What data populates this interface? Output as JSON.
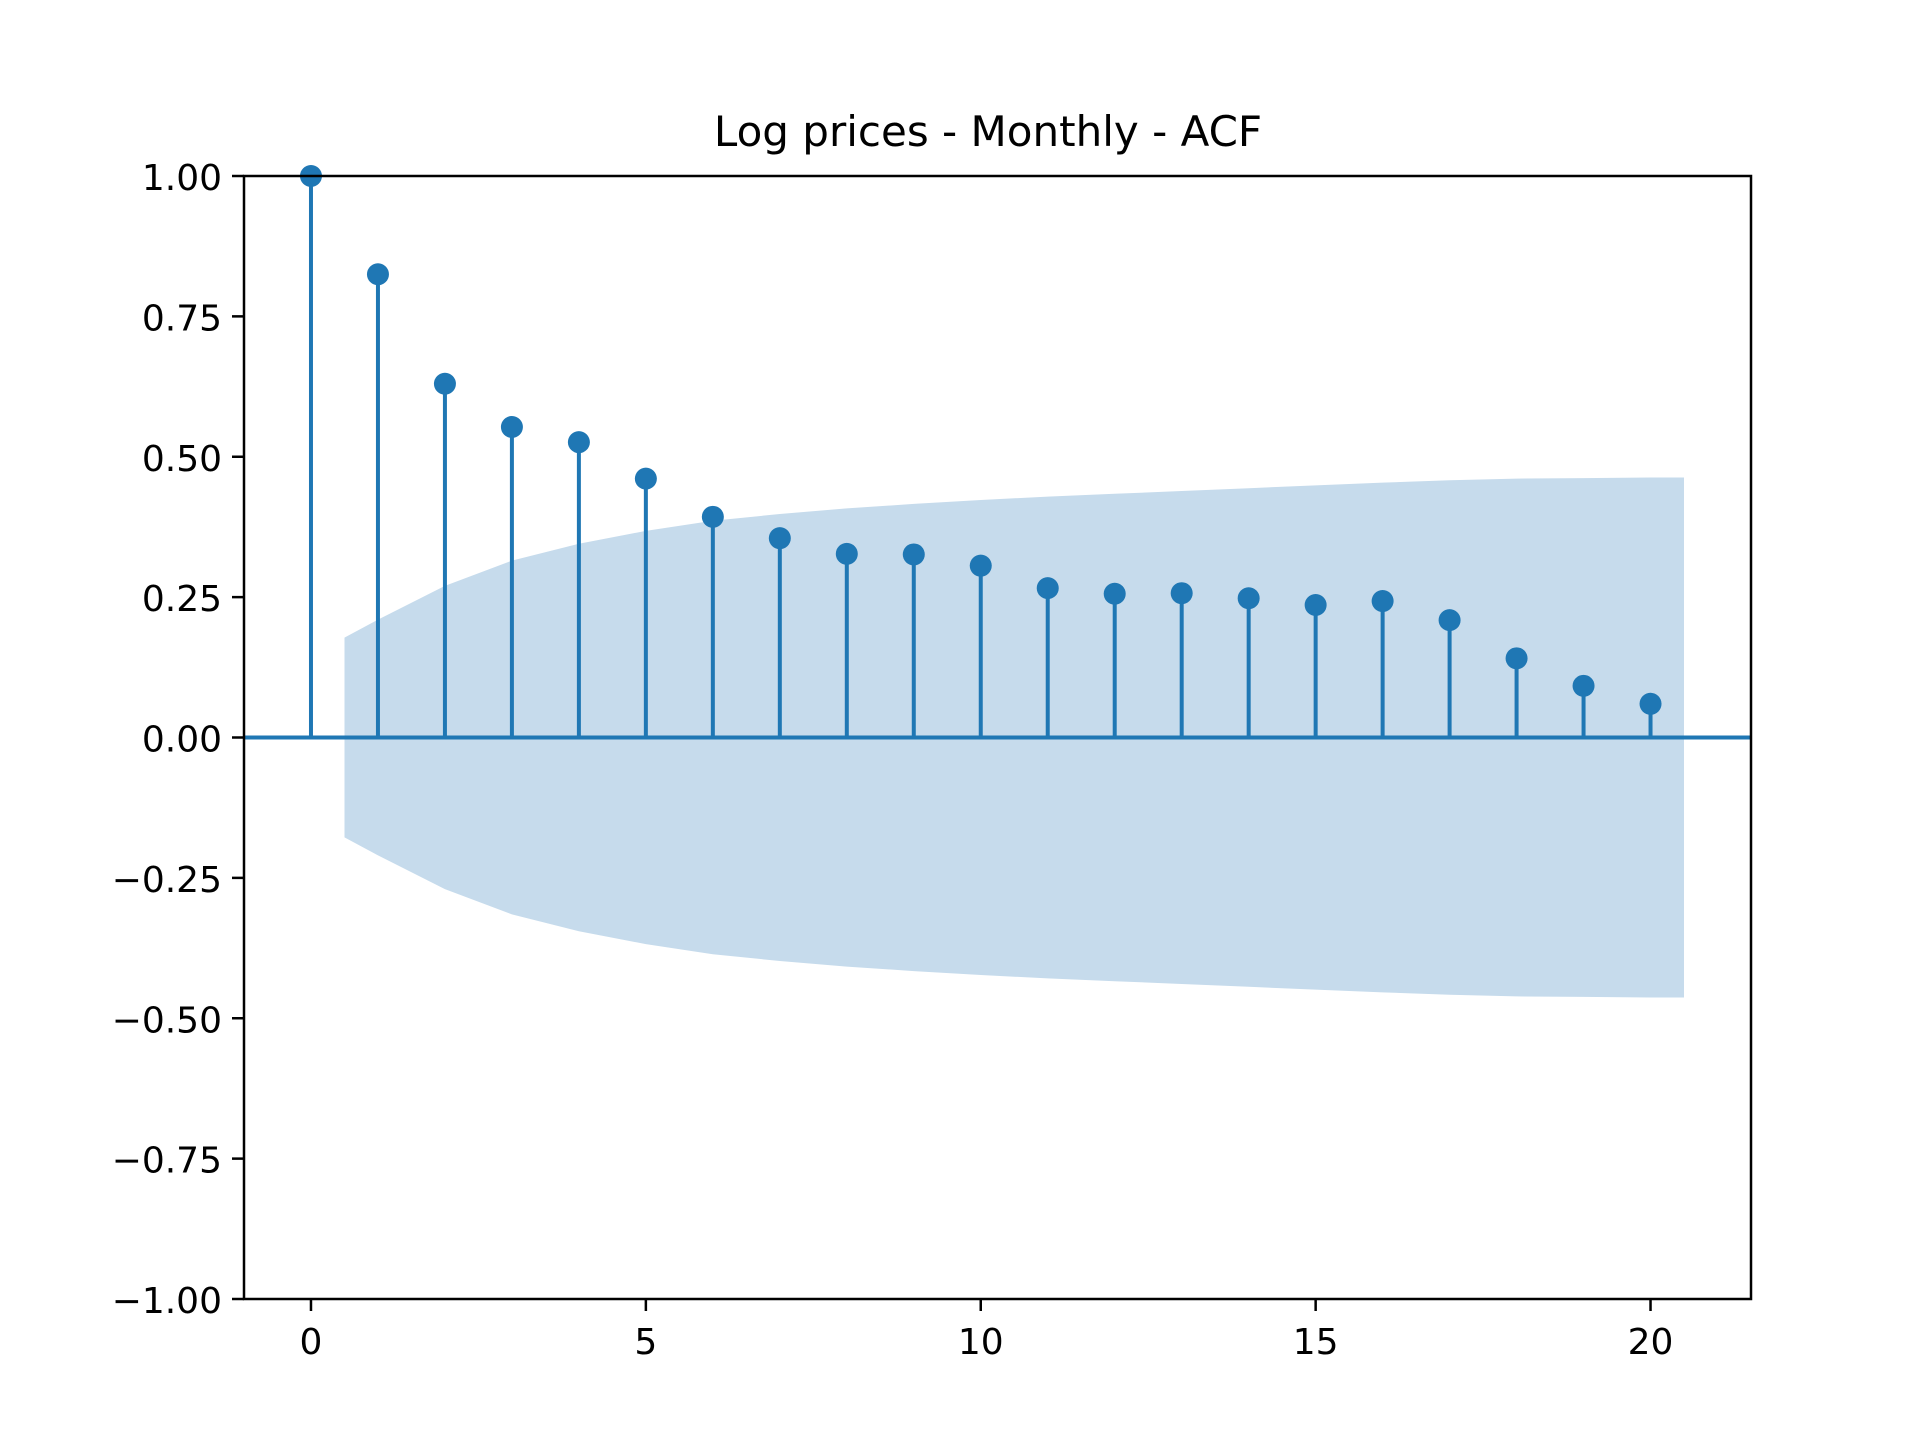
{
  "chart_data": {
    "type": "stem",
    "title": "Log prices - Monthly - ACF",
    "xlabel": "",
    "ylabel": "",
    "xlim": [
      -1,
      21.5
    ],
    "ylim": [
      -1.0,
      1.0
    ],
    "x_ticks": [
      0,
      5,
      10,
      15,
      20
    ],
    "x_tick_labels": [
      "0",
      "5",
      "10",
      "15",
      "20"
    ],
    "y_ticks": [
      1.0,
      0.75,
      0.5,
      0.25,
      0.0,
      -0.25,
      -0.5,
      -0.75,
      -1.0
    ],
    "y_tick_labels": [
      "1.00",
      "0.75",
      "0.50",
      "0.25",
      "0.00",
      "−0.25",
      "−0.50",
      "−0.75",
      "−1.00"
    ],
    "grid": false,
    "legend": "none",
    "colors": {
      "stem": "#1f77b4",
      "confidence_band": "#c6dbec",
      "axes": "#000000"
    },
    "lags": [
      0,
      1,
      2,
      3,
      4,
      5,
      6,
      7,
      8,
      9,
      10,
      11,
      12,
      13,
      14,
      15,
      16,
      17,
      18,
      19,
      20
    ],
    "acf": [
      1.0,
      0.825,
      0.63,
      0.553,
      0.526,
      0.461,
      0.393,
      0.355,
      0.327,
      0.326,
      0.306,
      0.266,
      0.256,
      0.257,
      0.248,
      0.236,
      0.243,
      0.209,
      0.141,
      0.092,
      0.06
    ],
    "confidence_band": {
      "x": [
        0.5,
        1,
        2,
        3,
        4,
        5,
        6,
        7,
        8,
        9,
        10,
        11,
        12,
        13,
        14,
        15,
        16,
        17,
        18,
        19,
        20,
        20.5
      ],
      "upper": [
        0.178,
        0.21,
        0.27,
        0.315,
        0.345,
        0.368,
        0.386,
        0.398,
        0.408,
        0.416,
        0.423,
        0.429,
        0.434,
        0.439,
        0.444,
        0.449,
        0.454,
        0.458,
        0.461,
        0.462,
        0.463,
        0.463
      ]
    }
  }
}
